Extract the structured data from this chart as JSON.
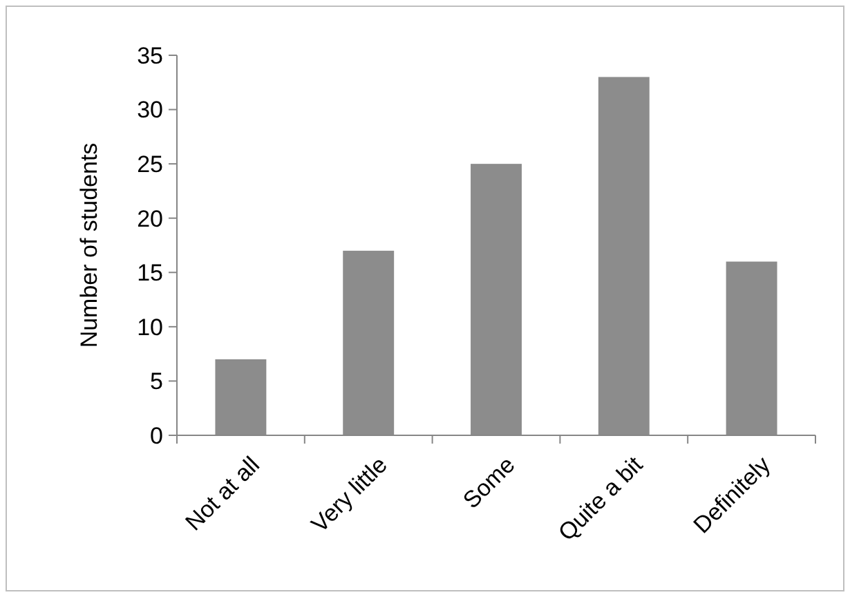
{
  "chart_data": {
    "type": "bar",
    "ylabel": "Number of students",
    "categories": [
      "Not at all",
      "Very little",
      "Some",
      "Quite a bit",
      "Definitely"
    ],
    "values": [
      7,
      17,
      25,
      33,
      16
    ],
    "color": "#8c8c8c",
    "ylim": [
      0,
      35
    ],
    "yticks": [
      0,
      5,
      10,
      15,
      20,
      25,
      30,
      35
    ],
    "grid": false
  }
}
